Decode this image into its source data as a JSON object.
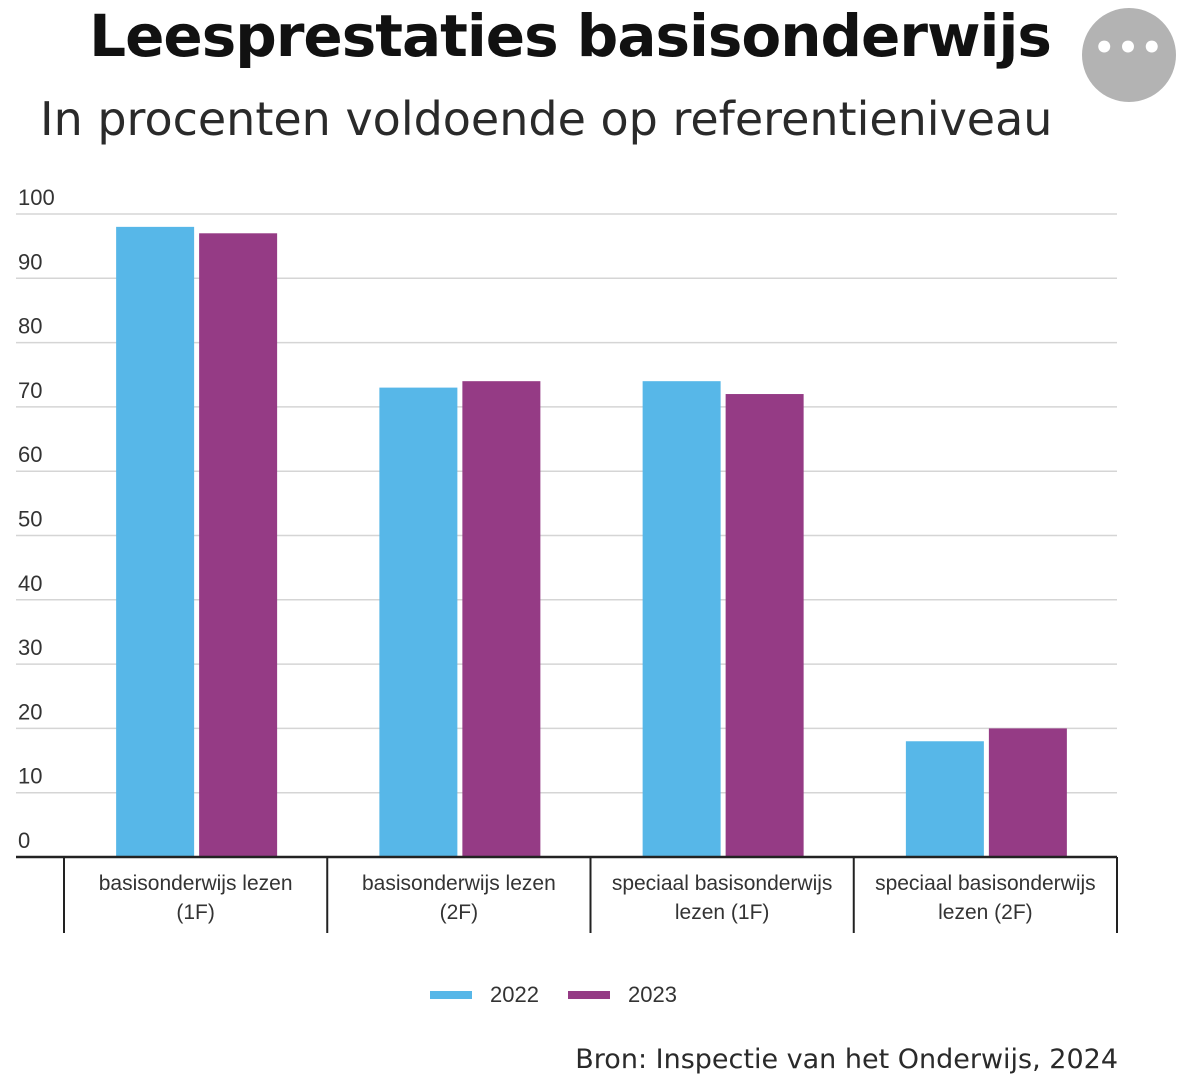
{
  "header": {
    "title": "Leesprestaties basisonderwijs",
    "subtitle": "In procenten voldoende op referentieniveau",
    "more_label": "•••"
  },
  "colors": {
    "series_2022": "#57b7e8",
    "series_2023": "#953b85",
    "grid": "#d5d5d5",
    "axis": "#222222"
  },
  "chart_data": {
    "type": "bar",
    "title": "Leesprestaties basisonderwijs",
    "subtitle": "In procenten voldoende op referentieniveau",
    "categories": [
      [
        "basisonderwijs lezen",
        "(1F)"
      ],
      [
        "basisonderwijs lezen",
        "(2F)"
      ],
      [
        "speciaal basisonderwijs",
        "lezen (1F)"
      ],
      [
        "speciaal basisonderwijs",
        "lezen (2F)"
      ]
    ],
    "series": [
      {
        "name": "2022",
        "values": [
          98,
          73,
          74,
          18
        ]
      },
      {
        "name": "2023",
        "values": [
          97,
          74,
          72,
          20
        ]
      }
    ],
    "ylim": [
      0,
      100
    ],
    "yticks": [
      0,
      10,
      20,
      30,
      40,
      50,
      60,
      70,
      80,
      90,
      100
    ],
    "grid": true,
    "legend": "bottom-center"
  },
  "source": "Bron: Inspectie van het Onderwijs, 2024"
}
